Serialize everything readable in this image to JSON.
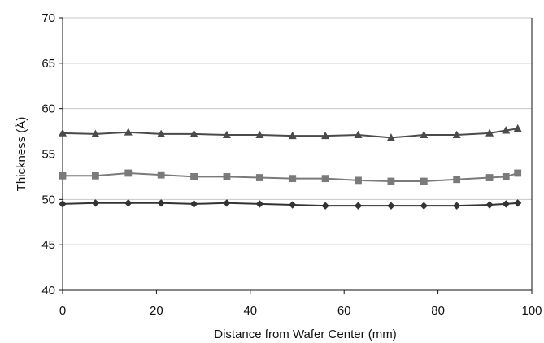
{
  "chart_data": {
    "type": "line",
    "title": "",
    "xlabel": "Distance from Wafer Center (mm)",
    "ylabel": "Thickness (Å)",
    "xlim": [
      0,
      100
    ],
    "ylim": [
      40,
      70
    ],
    "x_ticks": [
      0,
      20,
      40,
      60,
      80,
      100
    ],
    "y_ticks": [
      40,
      45,
      50,
      55,
      60,
      65,
      70
    ],
    "x_tick_labels": [
      "0",
      "20",
      "40",
      "60",
      "80",
      "100"
    ],
    "y_tick_labels": [
      "40",
      "45",
      "50",
      "55",
      "60",
      "65",
      "70"
    ],
    "grid": "horizontal",
    "legend": "none",
    "colors": {
      "top_series": "#4a4a4a",
      "middle_series": "#7a7a7a",
      "bottom_series": "#333333",
      "grid": "#c8c8c8",
      "axis": "#111111"
    },
    "series": [
      {
        "marker": "triangle",
        "x": [
          0,
          7,
          14,
          21,
          28,
          35,
          42,
          49,
          56,
          63,
          70,
          77,
          84,
          91,
          94.5,
          97
        ],
        "y": [
          57.3,
          57.2,
          57.4,
          57.2,
          57.2,
          57.1,
          57.1,
          57.0,
          57.0,
          57.1,
          56.8,
          57.1,
          57.1,
          57.3,
          57.6,
          57.8
        ]
      },
      {
        "marker": "square",
        "x": [
          0,
          7,
          14,
          21,
          28,
          35,
          42,
          49,
          56,
          63,
          70,
          77,
          84,
          91,
          94.5,
          97
        ],
        "y": [
          52.6,
          52.6,
          52.9,
          52.7,
          52.5,
          52.5,
          52.4,
          52.3,
          52.3,
          52.1,
          52.0,
          52.0,
          52.2,
          52.4,
          52.5,
          52.9
        ]
      },
      {
        "marker": "diamond",
        "x": [
          0,
          7,
          14,
          21,
          28,
          35,
          42,
          49,
          56,
          63,
          70,
          77,
          84,
          91,
          94.5,
          97
        ],
        "y": [
          49.5,
          49.6,
          49.6,
          49.6,
          49.5,
          49.6,
          49.5,
          49.4,
          49.3,
          49.3,
          49.3,
          49.3,
          49.3,
          49.4,
          49.5,
          49.6
        ]
      }
    ]
  }
}
